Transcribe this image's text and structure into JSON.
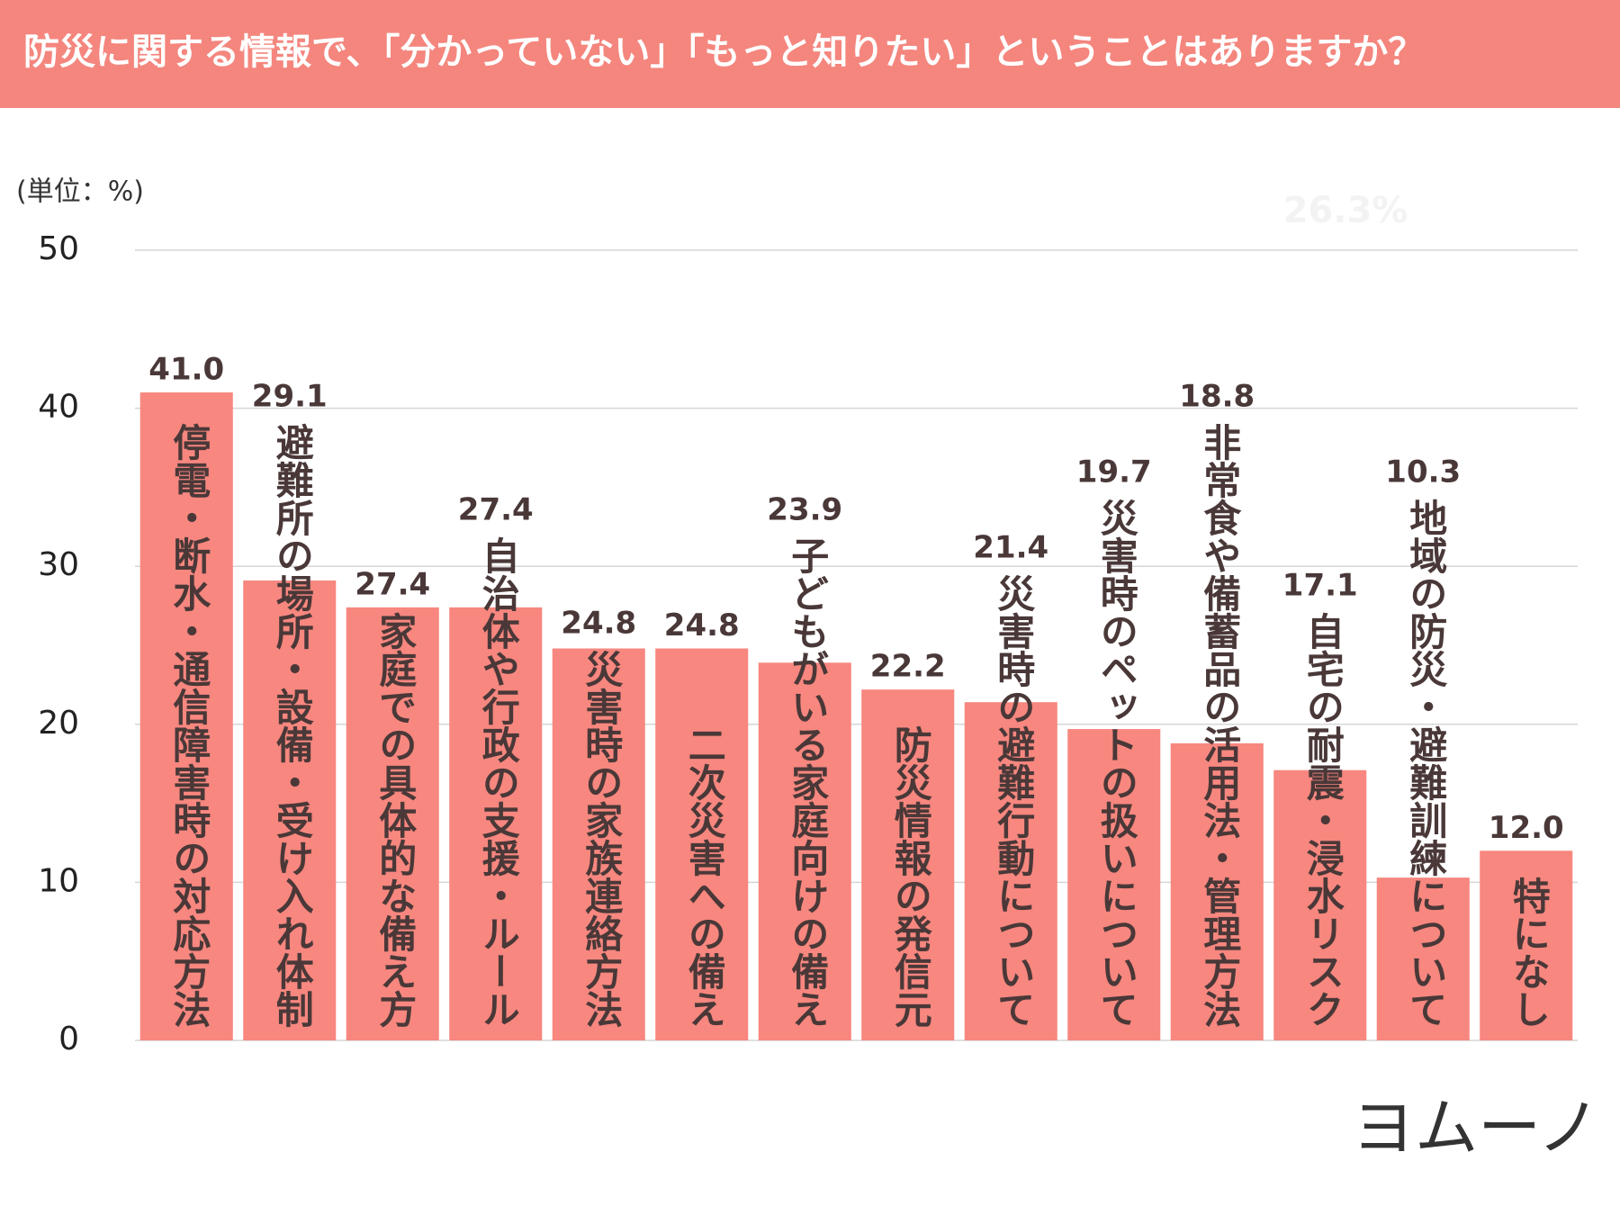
{
  "chart_data": {
    "type": "bar",
    "title": "防災に関する情報で、「分かっていない」「もっと知りたい」ということはありますか？",
    "unit_label": "(単位：%)",
    "annotation": "26.3%",
    "brand": "ヨムーノ",
    "categories": [
      "停電・断水・通信障害時の対応方法",
      "避難所の場所・設備・受け入れ体制",
      "家庭での具体的な備え方",
      "自治体や行政の支援・ルール",
      "災害時の家族連絡方法",
      "二次災害への備え",
      "子どもがいる家庭向けの備え",
      "防災情報の発信元",
      "災害時の避難行動について",
      "災害時のペットの扱いについて",
      "非常食や備蓄品の活用法・管理方法",
      "自宅の耐震・浸水リスク",
      "地域の防災・避難訓練について",
      "特になし"
    ],
    "values": [
      41,
      29.1,
      27.4,
      27.4,
      24.8,
      24.8,
      23.9,
      22.2,
      21.4,
      19.7,
      18.8,
      17.1,
      10.3,
      12
    ],
    "value_labels": [
      "41.0",
      "29.1",
      "27.4",
      "27.4",
      "24.8",
      "24.8",
      "23.9",
      "22.2",
      "21.4",
      "19.7",
      "18.8",
      "17.1",
      "10.3",
      "12.0"
    ],
    "color": "#f7877f",
    "ylim": [
      0,
      50
    ],
    "yticks": [
      0,
      10,
      20,
      30,
      40,
      50
    ],
    "grid": true
  }
}
